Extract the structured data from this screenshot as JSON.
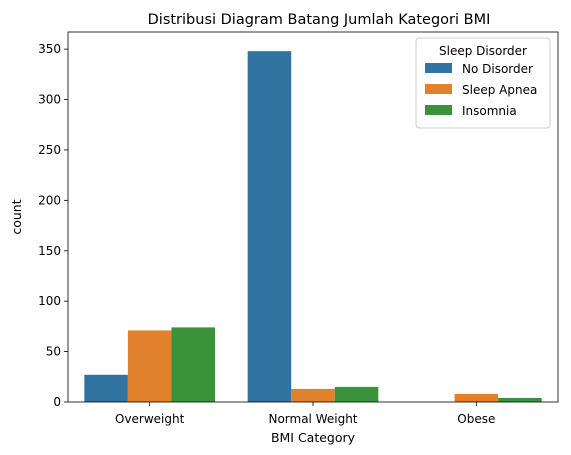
{
  "chart_data": {
    "type": "bar",
    "title": "Distribusi Diagram Batang Jumlah Kategori BMI",
    "xlabel": "BMI Category",
    "ylabel": "count",
    "categories": [
      "Overweight",
      "Normal Weight",
      "Obese"
    ],
    "ylim": [
      0,
      367
    ],
    "yticks": [
      0,
      50,
      100,
      150,
      200,
      250,
      300,
      350
    ],
    "grid": false,
    "legend": {
      "title": "Sleep Disorder",
      "position": "top-right"
    },
    "series": [
      {
        "name": "No Disorder",
        "color": "#3274a1",
        "values": [
          27,
          348,
          0
        ]
      },
      {
        "name": "Sleep Apnea",
        "color": "#e1812c",
        "values": [
          71,
          13,
          8
        ]
      },
      {
        "name": "Insomnia",
        "color": "#3a923a",
        "values": [
          74,
          15,
          4
        ]
      }
    ]
  }
}
